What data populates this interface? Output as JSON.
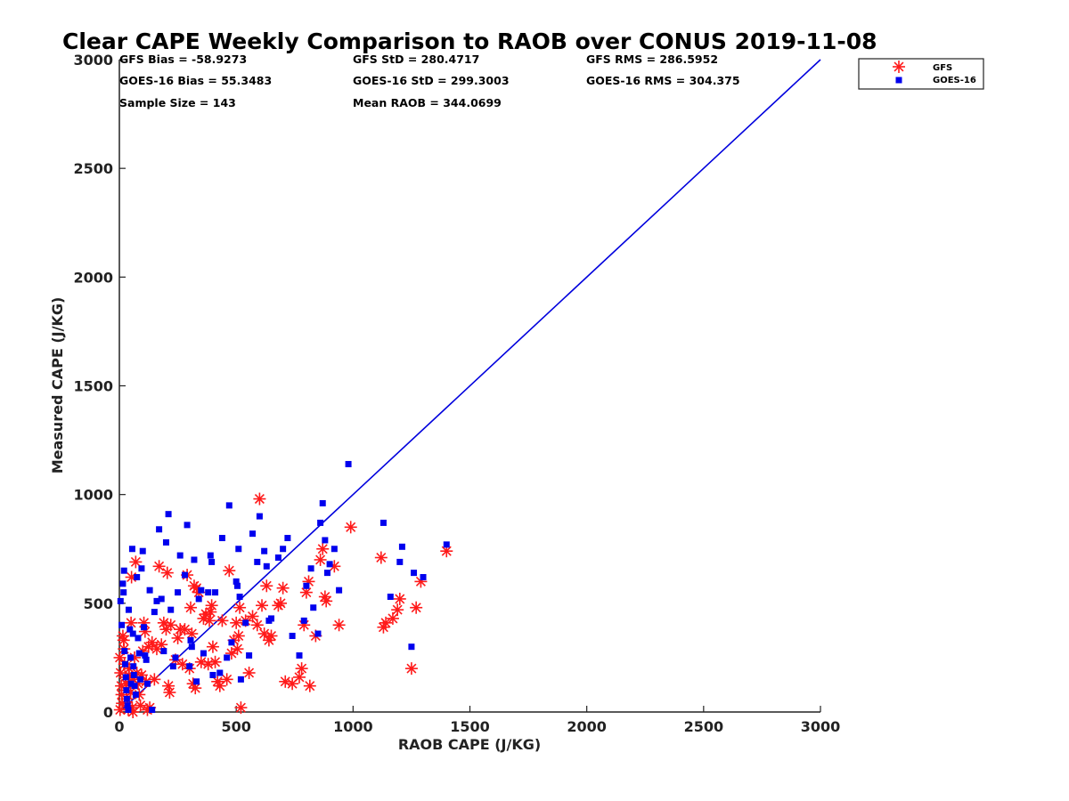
{
  "colors": {
    "gfs": "#ff1a1a",
    "goes": "#0000ee",
    "identity_line": "#0000dd",
    "axis": "#222222"
  },
  "chart_data": {
    "type": "scatter",
    "title": "Clear CAPE Weekly Comparison to RAOB over CONUS 2019-11-08",
    "xlabel": "RAOB CAPE (J/KG)",
    "ylabel": "Measured CAPE (J/KG)",
    "xlim": [
      0,
      3000
    ],
    "ylim": [
      0,
      3000
    ],
    "xticks": [
      0,
      500,
      1000,
      1500,
      2000,
      2500,
      3000
    ],
    "yticks": [
      0,
      500,
      1000,
      1500,
      2000,
      2500,
      3000
    ],
    "grid": false,
    "legend_position": "top-right",
    "reference_line": {
      "x": [
        0,
        3000
      ],
      "y": [
        0,
        3000
      ]
    },
    "stats": [
      {
        "text": "GFS Bias = -58.9273"
      },
      {
        "text": "GFS StD = 280.4717"
      },
      {
        "text": "GFS RMS = 286.5952"
      },
      {
        "text": "GOES-16 Bias = 55.3483"
      },
      {
        "text": "GOES-16 StD = 299.3003"
      },
      {
        "text": "GOES-16 RMS = 304.375"
      },
      {
        "text": "Sample Size = 143"
      },
      {
        "text": "Mean RAOB = 344.0699"
      }
    ],
    "series": [
      {
        "name": "GFS",
        "marker": "asterisk",
        "points": [
          [
            2,
            250
          ],
          [
            5,
            180
          ],
          [
            8,
            120
          ],
          [
            10,
            80
          ],
          [
            12,
            40
          ],
          [
            3,
            10
          ],
          [
            15,
            350
          ],
          [
            18,
            330
          ],
          [
            20,
            290
          ],
          [
            22,
            220
          ],
          [
            25,
            160
          ],
          [
            28,
            130
          ],
          [
            30,
            100
          ],
          [
            32,
            60
          ],
          [
            35,
            30
          ],
          [
            38,
            10
          ],
          [
            40,
            170
          ],
          [
            42,
            200
          ],
          [
            45,
            140
          ],
          [
            48,
            90
          ],
          [
            50,
            410
          ],
          [
            52,
            620
          ],
          [
            55,
            20
          ],
          [
            58,
            0
          ],
          [
            60,
            150
          ],
          [
            65,
            250
          ],
          [
            70,
            690
          ],
          [
            75,
            180
          ],
          [
            80,
            130
          ],
          [
            85,
            80
          ],
          [
            90,
            30
          ],
          [
            95,
            170
          ],
          [
            100,
            280
          ],
          [
            105,
            410
          ],
          [
            110,
            370
          ],
          [
            115,
            140
          ],
          [
            120,
            10
          ],
          [
            125,
            300
          ],
          [
            130,
            20
          ],
          [
            140,
            320
          ],
          [
            150,
            150
          ],
          [
            160,
            290
          ],
          [
            170,
            670
          ],
          [
            180,
            310
          ],
          [
            190,
            410
          ],
          [
            200,
            380
          ],
          [
            205,
            640
          ],
          [
            210,
            120
          ],
          [
            215,
            90
          ],
          [
            220,
            400
          ],
          [
            240,
            240
          ],
          [
            250,
            340
          ],
          [
            260,
            380
          ],
          [
            270,
            220
          ],
          [
            280,
            380
          ],
          [
            290,
            630
          ],
          [
            300,
            200
          ],
          [
            305,
            480
          ],
          [
            310,
            360
          ],
          [
            315,
            130
          ],
          [
            320,
            580
          ],
          [
            325,
            110
          ],
          [
            330,
            570
          ],
          [
            340,
            550
          ],
          [
            350,
            230
          ],
          [
            360,
            430
          ],
          [
            370,
            450
          ],
          [
            380,
            220
          ],
          [
            385,
            420
          ],
          [
            390,
            460
          ],
          [
            395,
            490
          ],
          [
            400,
            300
          ],
          [
            410,
            230
          ],
          [
            420,
            140
          ],
          [
            430,
            120
          ],
          [
            440,
            420
          ],
          [
            460,
            150
          ],
          [
            470,
            650
          ],
          [
            480,
            270
          ],
          [
            490,
            330
          ],
          [
            500,
            410
          ],
          [
            505,
            290
          ],
          [
            510,
            350
          ],
          [
            515,
            480
          ],
          [
            520,
            20
          ],
          [
            540,
            420
          ],
          [
            555,
            180
          ],
          [
            570,
            440
          ],
          [
            590,
            400
          ],
          [
            600,
            980
          ],
          [
            610,
            490
          ],
          [
            620,
            360
          ],
          [
            630,
            580
          ],
          [
            640,
            330
          ],
          [
            650,
            350
          ],
          [
            680,
            490
          ],
          [
            690,
            500
          ],
          [
            700,
            570
          ],
          [
            710,
            140
          ],
          [
            740,
            130
          ],
          [
            770,
            160
          ],
          [
            780,
            200
          ],
          [
            790,
            400
          ],
          [
            800,
            550
          ],
          [
            810,
            600
          ],
          [
            815,
            120
          ],
          [
            840,
            350
          ],
          [
            860,
            700
          ],
          [
            870,
            750
          ],
          [
            880,
            530
          ],
          [
            885,
            510
          ],
          [
            920,
            670
          ],
          [
            940,
            400
          ],
          [
            990,
            850
          ],
          [
            1120,
            710
          ],
          [
            1130,
            390
          ],
          [
            1140,
            410
          ],
          [
            1170,
            430
          ],
          [
            1190,
            470
          ],
          [
            1200,
            520
          ],
          [
            1250,
            200
          ],
          [
            1270,
            480
          ],
          [
            1290,
            600
          ],
          [
            1400,
            740
          ]
        ]
      },
      {
        "name": "GOES-16",
        "marker": "square",
        "points": [
          [
            5,
            510
          ],
          [
            10,
            400
          ],
          [
            15,
            590
          ],
          [
            18,
            550
          ],
          [
            20,
            650
          ],
          [
            22,
            280
          ],
          [
            25,
            220
          ],
          [
            28,
            160
          ],
          [
            30,
            100
          ],
          [
            32,
            60
          ],
          [
            35,
            30
          ],
          [
            38,
            10
          ],
          [
            40,
            470
          ],
          [
            45,
            380
          ],
          [
            48,
            250
          ],
          [
            50,
            130
          ],
          [
            55,
            750
          ],
          [
            58,
            360
          ],
          [
            60,
            210
          ],
          [
            62,
            170
          ],
          [
            65,
            120
          ],
          [
            70,
            80
          ],
          [
            75,
            620
          ],
          [
            80,
            340
          ],
          [
            85,
            270
          ],
          [
            90,
            150
          ],
          [
            95,
            660
          ],
          [
            100,
            740
          ],
          [
            105,
            390
          ],
          [
            110,
            260
          ],
          [
            115,
            240
          ],
          [
            120,
            130
          ],
          [
            130,
            560
          ],
          [
            140,
            10
          ],
          [
            150,
            460
          ],
          [
            160,
            510
          ],
          [
            170,
            840
          ],
          [
            180,
            520
          ],
          [
            190,
            280
          ],
          [
            200,
            780
          ],
          [
            210,
            910
          ],
          [
            220,
            470
          ],
          [
            230,
            210
          ],
          [
            240,
            250
          ],
          [
            250,
            550
          ],
          [
            260,
            720
          ],
          [
            280,
            630
          ],
          [
            290,
            860
          ],
          [
            300,
            210
          ],
          [
            305,
            330
          ],
          [
            310,
            300
          ],
          [
            320,
            700
          ],
          [
            330,
            140
          ],
          [
            340,
            520
          ],
          [
            350,
            560
          ],
          [
            360,
            270
          ],
          [
            380,
            550
          ],
          [
            390,
            720
          ],
          [
            395,
            690
          ],
          [
            400,
            170
          ],
          [
            410,
            550
          ],
          [
            430,
            180
          ],
          [
            440,
            800
          ],
          [
            460,
            250
          ],
          [
            470,
            950
          ],
          [
            480,
            320
          ],
          [
            500,
            600
          ],
          [
            505,
            580
          ],
          [
            510,
            750
          ],
          [
            515,
            530
          ],
          [
            520,
            150
          ],
          [
            540,
            410
          ],
          [
            555,
            260
          ],
          [
            570,
            820
          ],
          [
            590,
            690
          ],
          [
            600,
            900
          ],
          [
            620,
            740
          ],
          [
            630,
            670
          ],
          [
            640,
            420
          ],
          [
            650,
            430
          ],
          [
            680,
            710
          ],
          [
            700,
            750
          ],
          [
            720,
            800
          ],
          [
            740,
            350
          ],
          [
            770,
            260
          ],
          [
            790,
            420
          ],
          [
            800,
            580
          ],
          [
            820,
            660
          ],
          [
            830,
            480
          ],
          [
            850,
            360
          ],
          [
            860,
            870
          ],
          [
            870,
            960
          ],
          [
            880,
            790
          ],
          [
            890,
            640
          ],
          [
            900,
            680
          ],
          [
            920,
            750
          ],
          [
            940,
            560
          ],
          [
            980,
            1140
          ],
          [
            1130,
            870
          ],
          [
            1160,
            530
          ],
          [
            1200,
            690
          ],
          [
            1210,
            760
          ],
          [
            1250,
            300
          ],
          [
            1260,
            640
          ],
          [
            1300,
            620
          ],
          [
            1400,
            770
          ]
        ]
      }
    ]
  }
}
